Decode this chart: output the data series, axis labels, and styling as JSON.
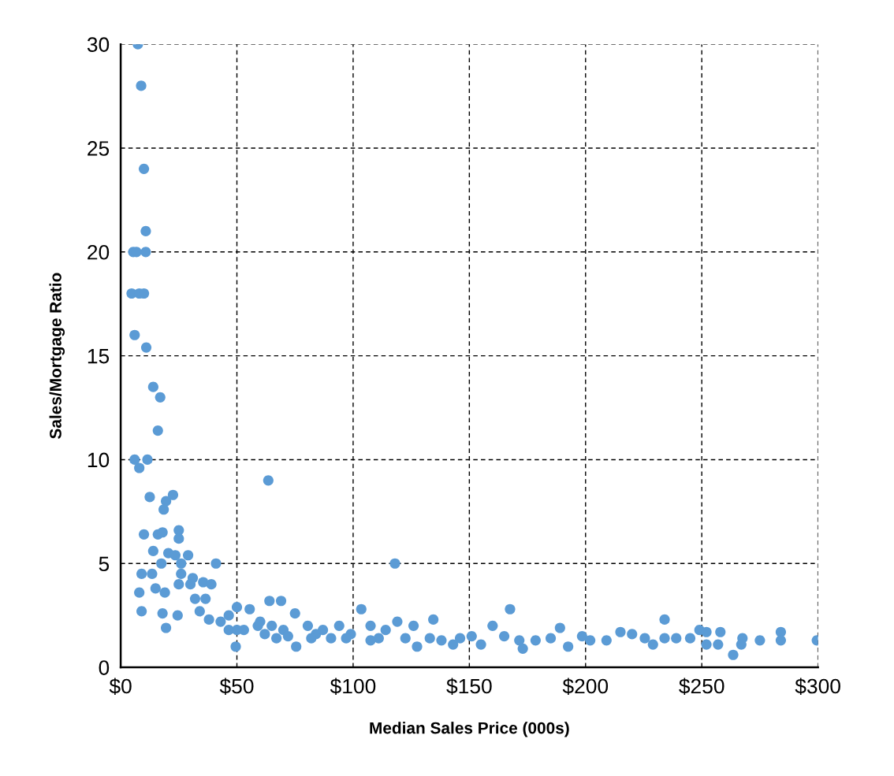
{
  "chart_data": {
    "type": "scatter",
    "xlabel": "Median Sales Price (000s)",
    "ylabel": "Sales/Mortgage Ratio",
    "xlim": [
      0,
      300
    ],
    "ylim": [
      0,
      30
    ],
    "xticks": [
      {
        "value": 0,
        "label": "$0"
      },
      {
        "value": 50,
        "label": "$50"
      },
      {
        "value": 100,
        "label": "$100"
      },
      {
        "value": 150,
        "label": "$150"
      },
      {
        "value": 200,
        "label": "$200"
      },
      {
        "value": 250,
        "label": "$250"
      },
      {
        "value": 300,
        "label": "$300"
      }
    ],
    "yticks": [
      0,
      5,
      10,
      15,
      20,
      25,
      30
    ],
    "grid": true,
    "marker": "circle",
    "series": [
      {
        "color": "#5b9bd5",
        "x": [
          7.4,
          8.8,
          10,
          10.8,
          10.8,
          5.4,
          6.8,
          4.7,
          8,
          10,
          6,
          11,
          14,
          17,
          16,
          6,
          11.5,
          8,
          12.5,
          22.5,
          19.5,
          18.5,
          63.5,
          10,
          16,
          18,
          25,
          25,
          14,
          20.5,
          23.5,
          29,
          41,
          9,
          13.5,
          17.5,
          26,
          26,
          31,
          8,
          15,
          19,
          25,
          30,
          35.5,
          39,
          9,
          18,
          24.5,
          19.5,
          32,
          36.5,
          34,
          38,
          46.5,
          50,
          64,
          69,
          55.5,
          59,
          49.5,
          53,
          60,
          65,
          70,
          75,
          75.5,
          80.5,
          84,
          87,
          90.5,
          94,
          99,
          103.5,
          107.5,
          111,
          114,
          118,
          119,
          122.5,
          126,
          127.5,
          134.5,
          133,
          138,
          143,
          146,
          151,
          155,
          160,
          165,
          167.5,
          171.5,
          173,
          178.5,
          185,
          189,
          192.5,
          198.5,
          202,
          209,
          215,
          220,
          225.5,
          229,
          234,
          234,
          239,
          245,
          249,
          252,
          252,
          258,
          257,
          263.5,
          267.5,
          267,
          275,
          284,
          284,
          299.5,
          107.5,
          97,
          82,
          67,
          62,
          72,
          46.5,
          43,
          50
        ],
        "values": [
          30,
          28,
          24,
          21,
          20,
          20,
          20,
          18,
          18,
          18,
          16,
          15.4,
          13.5,
          13,
          11.4,
          10,
          10,
          9.6,
          8.2,
          8.3,
          8,
          7.6,
          9,
          6.4,
          6.4,
          6.5,
          6.6,
          6.2,
          5.6,
          5.5,
          5.4,
          5.4,
          5,
          4.5,
          4.5,
          5,
          5,
          4.5,
          4.3,
          3.6,
          3.8,
          3.6,
          4,
          4,
          4.1,
          4,
          2.7,
          2.6,
          2.5,
          1.9,
          3.3,
          3.3,
          2.7,
          2.3,
          2.5,
          2.9,
          3.2,
          3.2,
          2.8,
          2,
          1,
          1.8,
          2.2,
          2,
          1.8,
          2.6,
          1,
          2,
          1.6,
          1.8,
          1.4,
          2,
          1.6,
          2.8,
          2,
          1.4,
          1.8,
          5,
          2.2,
          1.4,
          2,
          1,
          2.3,
          1.4,
          1.3,
          1.1,
          1.4,
          1.5,
          1.1,
          2,
          1.5,
          2.8,
          1.3,
          0.9,
          1.3,
          1.4,
          1.9,
          1,
          1.5,
          1.3,
          1.3,
          1.7,
          1.6,
          1.4,
          1.1,
          2.3,
          1.4,
          1.4,
          1.4,
          1.8,
          1.7,
          1.1,
          1.7,
          1.1,
          0.6,
          1.4,
          1.1,
          1.3,
          1.7,
          1.3,
          1.3,
          1.3,
          1.4,
          1.4,
          1.4,
          1.6,
          1.5,
          1.8,
          2.2,
          1.8
        ]
      }
    ]
  }
}
